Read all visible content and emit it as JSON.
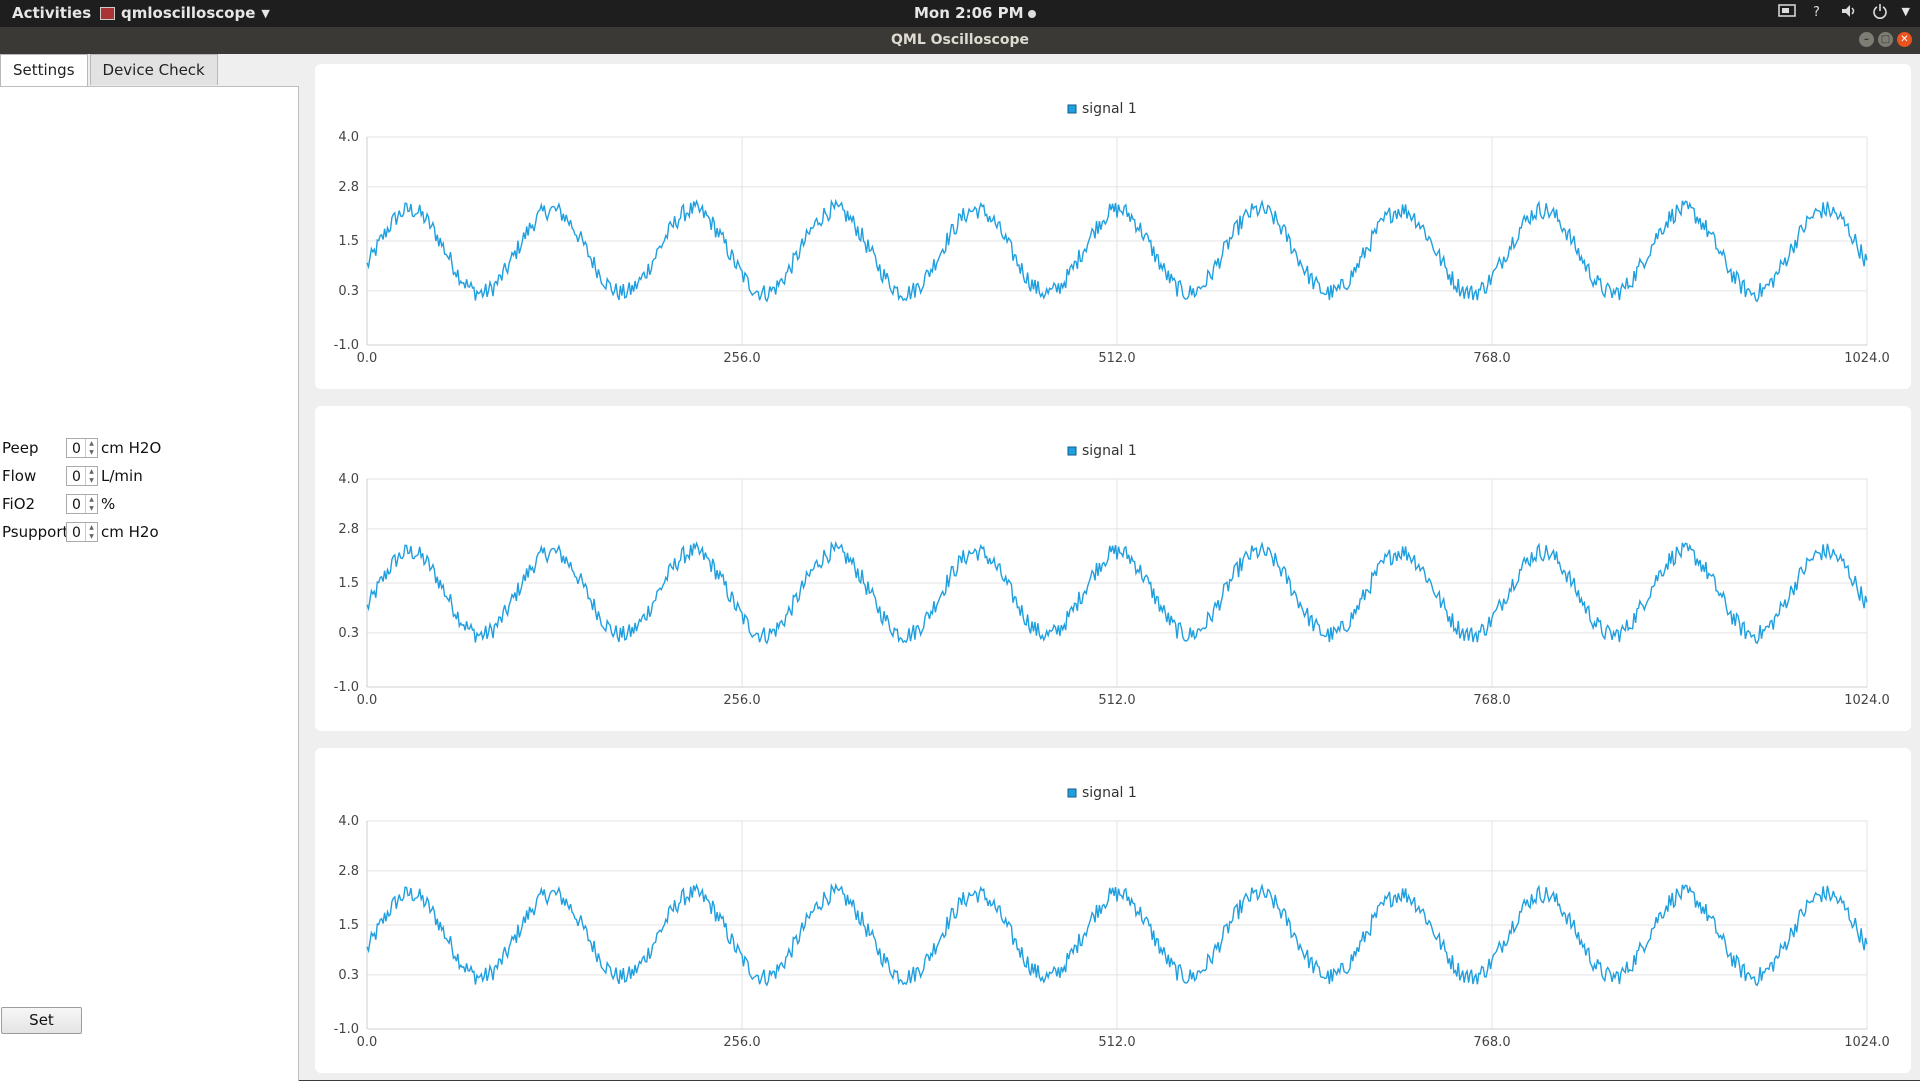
{
  "topbar": {
    "activities": "Activities",
    "app_name": "qmloscilloscope",
    "clock": "Mon  2:06 PM",
    "tray_icons": [
      "screen-icon",
      "help-icon",
      "volume-icon",
      "power-icon"
    ]
  },
  "window": {
    "title": "QML Oscilloscope"
  },
  "tabs": [
    {
      "label": "Settings",
      "active": true
    },
    {
      "label": "Device Check",
      "active": false
    }
  ],
  "form": {
    "fields": [
      {
        "label": "Peep",
        "value": "0",
        "unit": "cm H2O"
      },
      {
        "label": "Flow",
        "value": "0",
        "unit": "L/min"
      },
      {
        "label": "FiO2",
        "value": "0",
        "unit": "%"
      },
      {
        "label": "Psupport",
        "value": "0",
        "unit": "cm H2o"
      }
    ],
    "set_label": "Set"
  },
  "colors": {
    "series": "#209fdf",
    "grid": "#e3e3e3",
    "axis_text": "#444444"
  },
  "chart_data": [
    {
      "type": "line",
      "legend": "signal 1",
      "legend_position": "top-center",
      "grid": true,
      "xlim": [
        0,
        1024
      ],
      "ylim": [
        -1.0,
        4.0
      ],
      "xticks": [
        "0.0",
        "256.0",
        "512.0",
        "768.0",
        "1024.0"
      ],
      "yticks": [
        "4.0",
        "2.8",
        "1.5",
        "0.3",
        "-1.0"
      ],
      "series": [
        {
          "name": "signal 1",
          "waveform": "noisy sine",
          "periods": 10.6,
          "center": 1.25,
          "amplitude": 1.0,
          "noise": 0.22
        }
      ]
    },
    {
      "type": "line",
      "legend": "signal 1",
      "legend_position": "top-center",
      "grid": true,
      "xlim": [
        0,
        1024
      ],
      "ylim": [
        -1.0,
        4.0
      ],
      "xticks": [
        "0.0",
        "256.0",
        "512.0",
        "768.0",
        "1024.0"
      ],
      "yticks": [
        "4.0",
        "2.8",
        "1.5",
        "0.3",
        "-1.0"
      ],
      "series": [
        {
          "name": "signal 1",
          "waveform": "noisy sine",
          "periods": 10.6,
          "center": 1.25,
          "amplitude": 1.0,
          "noise": 0.22
        }
      ]
    },
    {
      "type": "line",
      "legend": "signal 1",
      "legend_position": "top-center",
      "grid": true,
      "xlim": [
        0,
        1024
      ],
      "ylim": [
        -1.0,
        4.0
      ],
      "xticks": [
        "0.0",
        "256.0",
        "512.0",
        "768.0",
        "1024.0"
      ],
      "yticks": [
        "4.0",
        "2.8",
        "1.5",
        "0.3",
        "-1.0"
      ],
      "series": [
        {
          "name": "signal 1",
          "waveform": "noisy sine",
          "periods": 10.6,
          "center": 1.25,
          "amplitude": 1.0,
          "noise": 0.22
        }
      ]
    }
  ]
}
